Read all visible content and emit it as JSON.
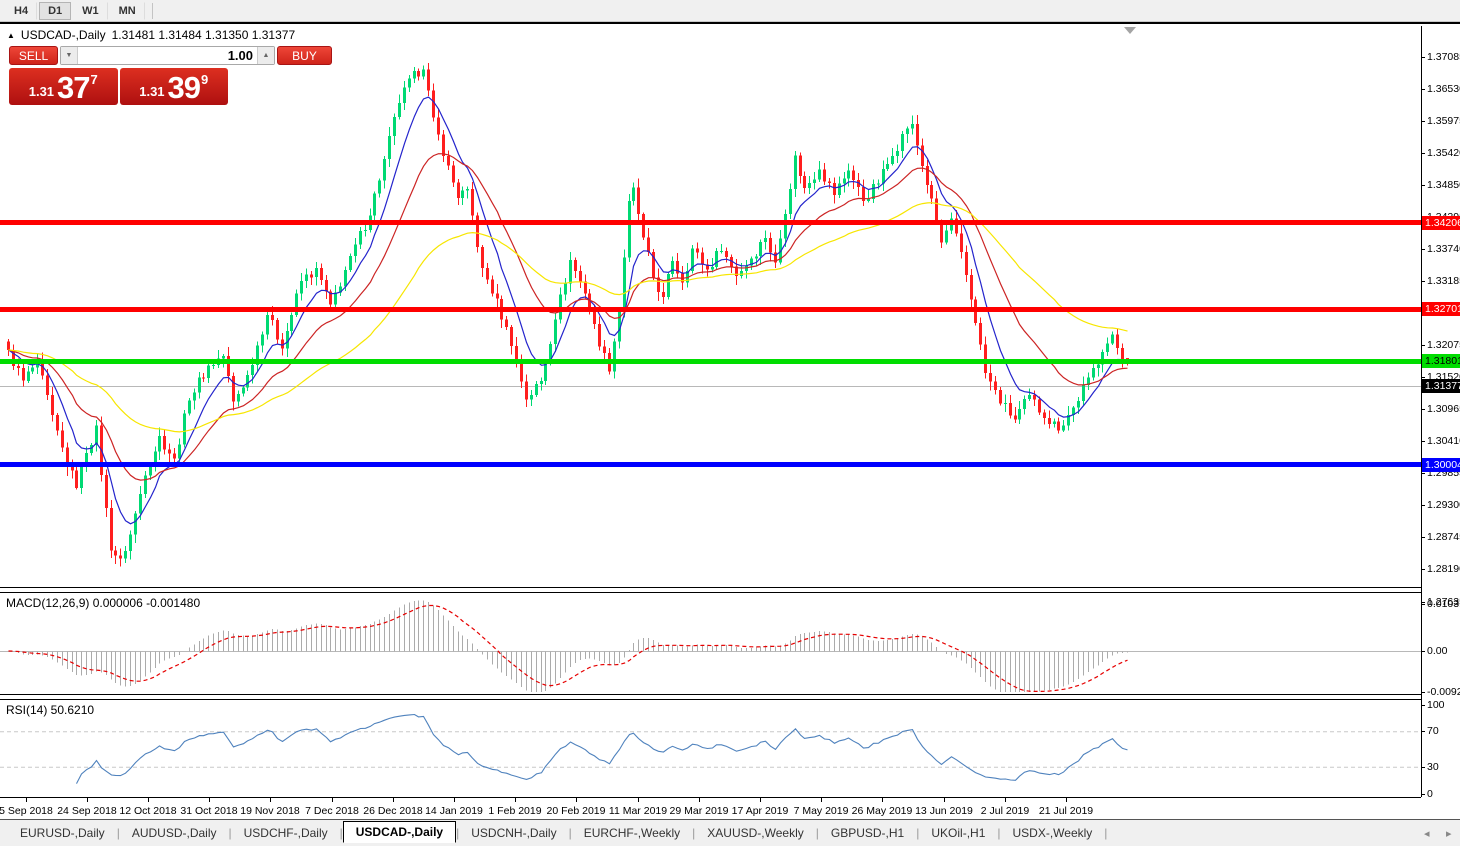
{
  "window": {
    "timeframes": [
      "H4",
      "D1",
      "W1",
      "MN"
    ],
    "active_timeframe": "D1"
  },
  "icons": {
    "collapse": "▲",
    "volume_down": "▼",
    "volume_up": "▲",
    "tab_scroll_left": "◂",
    "tab_scroll_right": "▸",
    "shift_marker": "▼"
  },
  "chart": {
    "symbol_title": "USDCAD-,Daily",
    "ohlc_readout": "1.31481 1.31484 1.31350 1.31377",
    "open": "1.31481",
    "high": "1.31484",
    "low": "1.31350",
    "close": "1.31377",
    "trade_panel": {
      "sell_label": "SELL",
      "buy_label": "BUY",
      "volume": "1.00",
      "sell_prefix": "1.31",
      "sell_main": "37",
      "sell_sup": "7",
      "buy_prefix": "1.31",
      "buy_main": "39",
      "buy_sup": "9"
    },
    "price_axis_ticks": [
      "1.37085",
      "1.36530",
      "1.35975",
      "1.35420",
      "1.34850",
      "1.34295",
      "1.33740",
      "1.33185",
      "1.32630",
      "1.32075",
      "1.31520",
      "1.30965",
      "1.30410",
      "1.29855",
      "1.29300",
      "1.28745",
      "1.28190",
      "1.27635"
    ],
    "levels": [
      {
        "name": "resistance-upper",
        "label": "1.34206",
        "value": 1.34206,
        "color": "#ff0000",
        "text_color": "#ffffff",
        "thickness": 5
      },
      {
        "name": "resistance-lower",
        "label": "1.32701",
        "value": 1.32701,
        "color": "#ff0000",
        "text_color": "#ffffff",
        "thickness": 5
      },
      {
        "name": "support-green",
        "label": "1.31801",
        "value": 1.31801,
        "color": "#00dd00",
        "text_color": "#000000",
        "thickness": 5
      },
      {
        "name": "support-blue",
        "label": "1.30004",
        "value": 1.30004,
        "color": "#0000ff",
        "text_color": "#ffffff",
        "thickness": 5
      }
    ],
    "current_price": {
      "label": "1.31377",
      "value": 1.31377,
      "tag_bg": "#000000",
      "tag_text": "#ffffff"
    }
  },
  "macd": {
    "label": "MACD(12,26,9) 0.000006 -0.001480",
    "fast": 12,
    "slow": 26,
    "signal": 9,
    "value": "0.000006",
    "signal_value": "-0.001480",
    "axis_ticks": [
      "0.010311",
      "0.00",
      "-0.009203"
    ],
    "axis_values": [
      0.010311,
      0,
      -0.009203
    ],
    "histogram_color": "#ababab",
    "signal_color": "#e60000"
  },
  "rsi": {
    "label": "RSI(14) 50.6210",
    "period": 14,
    "value": "50.6210",
    "axis_ticks": [
      "100",
      "70",
      "30",
      "0"
    ],
    "axis_values": [
      100,
      70,
      30,
      0
    ],
    "level_lines": [
      70,
      30
    ],
    "line_color": "#4f82bd"
  },
  "date_axis": [
    "5 Sep 2018",
    "24 Sep 2018",
    "12 Oct 2018",
    "31 Oct 2018",
    "19 Nov 2018",
    "7 Dec 2018",
    "26 Dec 2018",
    "14 Jan 2019",
    "1 Feb 2019",
    "20 Feb 2019",
    "11 Mar 2019",
    "29 Mar 2019",
    "17 Apr 2019",
    "7 May 2019",
    "26 May 2019",
    "13 Jun 2019",
    "2 Jul 2019",
    "21 Jul 2019"
  ],
  "tabs": {
    "items": [
      "EURUSD-,Daily",
      "AUDUSD-,Daily",
      "USDCHF-,Daily",
      "USDCAD-,Daily",
      "USDCNH-,Daily",
      "EURCHF-,Weekly",
      "XAUUSD-,Weekly",
      "GBPUSD-,H1",
      "UKOil-,H1",
      "USDX-,Weekly"
    ],
    "active_index": 3
  },
  "chart_data": {
    "type": "candlestick",
    "symbol": "USDCAD",
    "timeframe": "Daily",
    "title": "USDCAD-,Daily",
    "x_range": [
      "5 Sep 2018",
      "early Aug 2019"
    ],
    "y_range": [
      1.27635,
      1.37085
    ],
    "candle_count": 230,
    "up_color": "#00d973",
    "down_color": "#ff1e1e",
    "close_path_anchors": [
      [
        0,
        1.316
      ],
      [
        3,
        1.3108
      ],
      [
        6,
        1.3142
      ],
      [
        9,
        1.3046
      ],
      [
        12,
        1.2962
      ],
      [
        14,
        1.2926
      ],
      [
        16,
        1.2986
      ],
      [
        18,
        1.3028
      ],
      [
        19,
        1.2948
      ],
      [
        21,
        1.2818
      ],
      [
        23,
        1.2798
      ],
      [
        25,
        1.2842
      ],
      [
        28,
        1.2948
      ],
      [
        31,
        1.3012
      ],
      [
        34,
        1.2972
      ],
      [
        37,
        1.3078
      ],
      [
        41,
        1.3135
      ],
      [
        44,
        1.3152
      ],
      [
        46,
        1.3072
      ],
      [
        49,
        1.3118
      ],
      [
        53,
        1.3224
      ],
      [
        56,
        1.3168
      ],
      [
        60,
        1.3282
      ],
      [
        63,
        1.3302
      ],
      [
        66,
        1.3238
      ],
      [
        70,
        1.3322
      ],
      [
        74,
        1.3398
      ],
      [
        77,
        1.3492
      ],
      [
        80,
        1.3592
      ],
      [
        83,
        1.3642
      ],
      [
        85,
        1.3652
      ],
      [
        87,
        1.3562
      ],
      [
        89,
        1.3502
      ],
      [
        92,
        1.3428
      ],
      [
        94,
        1.3438
      ],
      [
        97,
        1.3302
      ],
      [
        100,
        1.3248
      ],
      [
        103,
        1.3172
      ],
      [
        106,
        1.3078
      ],
      [
        109,
        1.3108
      ],
      [
        112,
        1.3218
      ],
      [
        115,
        1.3318
      ],
      [
        118,
        1.3262
      ],
      [
        121,
        1.3172
      ],
      [
        123,
        1.3128
      ],
      [
        125,
        1.3232
      ],
      [
        127,
        1.3418
      ],
      [
        128,
        1.3442
      ],
      [
        130,
        1.3355
      ],
      [
        132,
        1.3288
      ],
      [
        134,
        1.3252
      ],
      [
        136,
        1.3318
      ],
      [
        138,
        1.3282
      ],
      [
        140,
        1.3338
      ],
      [
        143,
        1.3302
      ],
      [
        146,
        1.3338
      ],
      [
        149,
        1.3292
      ],
      [
        152,
        1.3322
      ],
      [
        155,
        1.3358
      ],
      [
        157,
        1.3312
      ],
      [
        159,
        1.3402
      ],
      [
        161,
        1.3498
      ],
      [
        163,
        1.3442
      ],
      [
        166,
        1.3478
      ],
      [
        169,
        1.3432
      ],
      [
        172,
        1.3475
      ],
      [
        175,
        1.3422
      ],
      [
        178,
        1.3452
      ],
      [
        181,
        1.3502
      ],
      [
        184,
        1.3548
      ],
      [
        185,
        1.3552
      ],
      [
        187,
        1.3482
      ],
      [
        189,
        1.3422
      ],
      [
        191,
        1.3348
      ],
      [
        193,
        1.3388
      ],
      [
        196,
        1.3292
      ],
      [
        198,
        1.3212
      ],
      [
        200,
        1.3122
      ],
      [
        203,
        1.3072
      ],
      [
        206,
        1.3042
      ],
      [
        209,
        1.3082
      ],
      [
        212,
        1.3048
      ],
      [
        215,
        1.3026
      ],
      [
        218,
        1.3062
      ],
      [
        221,
        1.3112
      ],
      [
        224,
        1.3162
      ],
      [
        226,
        1.3186
      ],
      [
        228,
        1.3148
      ],
      [
        229,
        1.31377
      ]
    ],
    "last_candle": {
      "o": 1.31481,
      "h": 1.31484,
      "l": 1.3135,
      "c": 1.31377
    },
    "overlays": [
      {
        "name": "ma-fast",
        "type": "EMA",
        "period": 8,
        "color": "#2424cc"
      },
      {
        "name": "ma-mid",
        "type": "EMA",
        "period": 21,
        "color": "#cc2424"
      },
      {
        "name": "ma-slow",
        "type": "EMA",
        "period": 55,
        "color": "#f7e600"
      }
    ]
  }
}
